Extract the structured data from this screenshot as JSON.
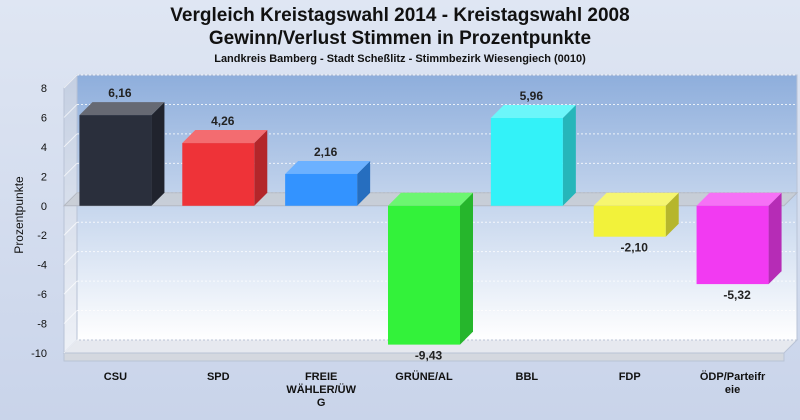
{
  "title_line1": "Vergleich Kreistagswahl 2014 - Kreistagswahl 2008",
  "title_line2": "Gewinn/Verlust Stimmen in Prozentpunkte",
  "subtitle": "Landkreis Bamberg - Stadt Scheßlitz - Stimmbezirk Wiesengiech (0010)",
  "chart_data": {
    "type": "bar",
    "title": "Vergleich Kreistagswahl 2014 - Kreistagswahl 2008 / Gewinn/Verlust Stimmen in Prozentpunkte",
    "subtitle": "Landkreis Bamberg - Stadt Scheßlitz - Stimmbezirk Wiesengiech (0010)",
    "ylabel": "Prozentpunkte",
    "xlabel": "",
    "ylim": [
      -10,
      8
    ],
    "yticks": [
      8,
      6,
      4,
      2,
      0,
      -2,
      -4,
      -6,
      -8,
      -10
    ],
    "grid": true,
    "categories": [
      "CSU",
      "SPD",
      "FREIE WÄHLER/ÜWG",
      "GRÜNE/AL",
      "BBL",
      "FDP",
      "ÖDP/Parteifreie"
    ],
    "category_display": [
      [
        "CSU"
      ],
      [
        "SPD"
      ],
      [
        "FREIE",
        "WÄHLER/ÜW",
        "G"
      ],
      [
        "GRÜNE/AL"
      ],
      [
        "BBL"
      ],
      [
        "FDP"
      ],
      [
        "ÖDP/Parteifr",
        "eie"
      ]
    ],
    "values": [
      6.16,
      4.26,
      2.16,
      -9.43,
      5.96,
      -2.1,
      -5.32
    ],
    "value_labels": [
      "6,16",
      "4,26",
      "2,16",
      "-9,43",
      "5,96",
      "-2,10",
      "-5,32"
    ],
    "colors": [
      "#2a2f3c",
      "#ee3338",
      "#3393ff",
      "#33f23a",
      "#33f2f8",
      "#f2f23a",
      "#f23af2"
    ]
  }
}
